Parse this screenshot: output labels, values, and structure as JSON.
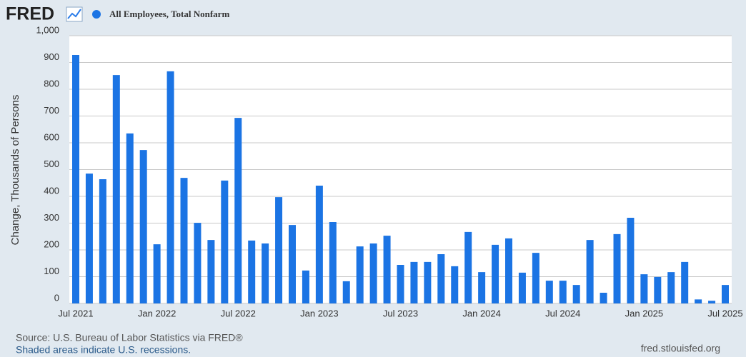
{
  "logo": "FRED",
  "chart_data": {
    "type": "bar",
    "series": [
      {
        "name": "All Employees, Total Nonfarm",
        "color": "#1b74e4",
        "values": [
          928,
          485,
          464,
          853,
          635,
          573,
          221,
          867,
          469,
          301,
          237,
          459,
          693,
          235,
          224,
          397,
          293,
          123,
          440,
          304,
          83,
          213,
          224,
          253,
          144,
          155,
          155,
          184,
          139,
          267,
          117,
          219,
          243,
          115,
          189,
          85,
          85,
          69,
          237,
          40,
          259,
          320,
          109,
          99,
          117,
          155,
          15,
          10,
          69
        ]
      }
    ],
    "categories": [
      "Jul 2021",
      null,
      null,
      null,
      null,
      null,
      "Jan 2022",
      null,
      null,
      null,
      null,
      null,
      "Jul 2022",
      null,
      null,
      null,
      null,
      null,
      "Jan 2023",
      null,
      null,
      null,
      null,
      null,
      "Jul 2023",
      null,
      null,
      null,
      null,
      null,
      "Jan 2024",
      null,
      null,
      null,
      null,
      null,
      "Jul 2024",
      null,
      null,
      null,
      null,
      null,
      "Jan 2025",
      null,
      null,
      null,
      null,
      null,
      "Jul 2025"
    ],
    "ylabel": "Change, Thousands of Persons",
    "ylim": [
      0,
      1000
    ],
    "yticks": [
      0,
      100,
      200,
      300,
      400,
      500,
      600,
      700,
      800,
      900,
      {
        "value": 1000,
        "label": "1,000"
      }
    ],
    "grid": true,
    "source": "Source: U.S. Bureau of Labor Statistics via FRED®",
    "note": "Shaded areas indicate U.S. recessions.",
    "url": "fred.stlouisfed.org"
  }
}
